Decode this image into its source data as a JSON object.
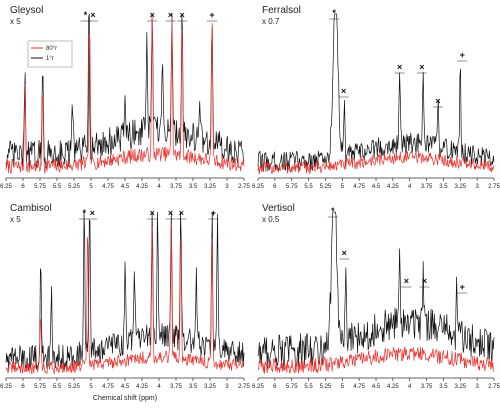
{
  "chart_data": [
    {
      "type": "line",
      "title": "Gleysol",
      "subtitle": "x 5",
      "xlabel": "",
      "xlim": [
        6.25,
        2.75
      ],
      "x_reversed": true,
      "x_ticks": [
        "6.25",
        "6",
        "5.75",
        "5.5",
        "5.25",
        "5",
        "4.75",
        "4.5",
        "4.25",
        "4",
        "3.75",
        "3.5",
        "3.25",
        "3",
        "2.75"
      ],
      "legend": {
        "position": "top-left",
        "entries": [
          "80°r",
          "1°r"
        ]
      },
      "series": [
        {
          "name": "80°r",
          "color": "#e8332f",
          "peaks": [
            [
              5.97,
              0.52
            ],
            [
              5.71,
              0.52
            ],
            [
              5.02,
              0.9
            ],
            [
              4.1,
              0.86
            ],
            [
              3.81,
              0.86
            ],
            [
              3.66,
              0.86
            ],
            [
              3.22,
              0.86
            ]
          ],
          "baseline": 0.07
        },
        {
          "name": "1°r",
          "color": "#111111",
          "peaks": [
            [
              5.97,
              0.52
            ],
            [
              5.71,
              0.5
            ],
            [
              5.27,
              0.3
            ],
            [
              5.03,
              1.0
            ],
            [
              4.5,
              0.32
            ],
            [
              4.18,
              0.6
            ],
            [
              4.1,
              0.86
            ],
            [
              3.95,
              0.38
            ],
            [
              3.81,
              0.86
            ],
            [
              3.66,
              0.86
            ],
            [
              3.4,
              0.28
            ],
            [
              3.22,
              0.86
            ]
          ],
          "baseline": 0.14
        }
      ],
      "annotations": [
        {
          "symbol": "*",
          "x": 5.08
        },
        {
          "symbol": "×",
          "x": 4.97
        },
        {
          "symbol": "×",
          "x": 4.1
        },
        {
          "symbol": "×",
          "x": 3.83
        },
        {
          "symbol": "×",
          "x": 3.66
        },
        {
          "symbol": "+",
          "x": 3.22
        }
      ]
    },
    {
      "type": "line",
      "title": "Ferralsol",
      "subtitle": "x 0.7",
      "xlabel": "",
      "xlim": [
        6.25,
        2.75
      ],
      "x_reversed": true,
      "x_ticks": [
        "6.25",
        "6",
        "5.75",
        "5.5",
        "5.25",
        "5",
        "4.75",
        "4.5",
        "4.25",
        "4",
        "3.75",
        "3.5",
        "3.25",
        "3",
        "2.75"
      ],
      "series": [
        {
          "name": "80°r",
          "color": "#e8332f",
          "peaks": [],
          "baseline": 0.06
        },
        {
          "name": "1°r",
          "color": "#111111",
          "peaks": [
            [
              5.1,
              1.0
            ],
            [
              4.97,
              0.32
            ],
            [
              4.15,
              0.45
            ],
            [
              3.8,
              0.42
            ],
            [
              3.58,
              0.3
            ],
            [
              3.25,
              0.55
            ]
          ],
          "baseline": 0.1
        }
      ],
      "annotations": [
        {
          "symbol": "*",
          "x": 5.12
        },
        {
          "symbol": "×",
          "x": 4.98
        },
        {
          "symbol": "×",
          "x": 4.15
        },
        {
          "symbol": "×",
          "x": 3.82
        },
        {
          "symbol": "×",
          "x": 3.58
        },
        {
          "symbol": "+",
          "x": 3.22
        }
      ]
    },
    {
      "type": "line",
      "title": "Cambisol",
      "subtitle": "x 5",
      "xlabel": "Chemical shift (ppm)",
      "xlim": [
        6.25,
        2.75
      ],
      "x_reversed": true,
      "x_ticks": [
        "6.25",
        "6",
        "5.75",
        "5.5",
        "5.25",
        "5",
        "4.75",
        "4.5",
        "4.25",
        "4",
        "3.75",
        "3.5",
        "3.25",
        "3",
        "2.75"
      ],
      "series": [
        {
          "name": "80°r",
          "color": "#e8332f",
          "peaks": [
            [
              5.74,
              0.35
            ],
            [
              5.05,
              0.9
            ],
            [
              4.1,
              0.8
            ],
            [
              3.82,
              0.8
            ],
            [
              3.68,
              0.8
            ],
            [
              3.22,
              0.8
            ]
          ],
          "baseline": 0.06
        },
        {
          "name": "1°r",
          "color": "#111111",
          "peaks": [
            [
              5.74,
              0.58
            ],
            [
              5.58,
              0.4
            ],
            [
              5.1,
              1.0
            ],
            [
              5.02,
              0.95
            ],
            [
              4.5,
              0.48
            ],
            [
              4.36,
              0.42
            ],
            [
              4.1,
              0.86
            ],
            [
              4.02,
              0.78
            ],
            [
              3.82,
              0.86
            ],
            [
              3.68,
              0.86
            ],
            [
              3.45,
              0.4
            ],
            [
              3.22,
              0.86
            ],
            [
              3.14,
              0.8
            ]
          ],
          "baseline": 0.12
        }
      ],
      "annotations": [
        {
          "symbol": "*",
          "x": 5.1
        },
        {
          "symbol": "×",
          "x": 4.98
        },
        {
          "symbol": "×",
          "x": 4.1
        },
        {
          "symbol": "×",
          "x": 3.83
        },
        {
          "symbol": "×",
          "x": 3.67
        },
        {
          "symbol": "+",
          "x": 3.2
        }
      ]
    },
    {
      "type": "line",
      "title": "Vertisol",
      "subtitle": "x 0.5",
      "xlabel": "",
      "xlim": [
        6.25,
        2.75
      ],
      "x_reversed": true,
      "x_ticks": [
        "6.25",
        "6",
        "5.75",
        "5.5",
        "5.25",
        "5",
        "4.75",
        "4.5",
        "4.25",
        "4",
        "3.75",
        "3.5",
        "3.25",
        "3",
        "2.75"
      ],
      "series": [
        {
          "name": "80°r",
          "color": "#e8332f",
          "peaks": [],
          "baseline": 0.07
        },
        {
          "name": "1°r",
          "color": "#111111",
          "peaks": [
            [
              5.12,
              1.0
            ],
            [
              4.95,
              0.45
            ],
            [
              4.15,
              0.4
            ],
            [
              3.8,
              0.38
            ],
            [
              3.3,
              0.3
            ]
          ],
          "baseline": 0.16
        }
      ],
      "annotations": [
        {
          "symbol": "*",
          "x": 5.14
        },
        {
          "symbol": "×",
          "x": 4.97
        },
        {
          "symbol": "×",
          "x": 4.05
        },
        {
          "symbol": "×",
          "x": 3.78
        },
        {
          "symbol": "+",
          "x": 3.22
        }
      ]
    }
  ]
}
